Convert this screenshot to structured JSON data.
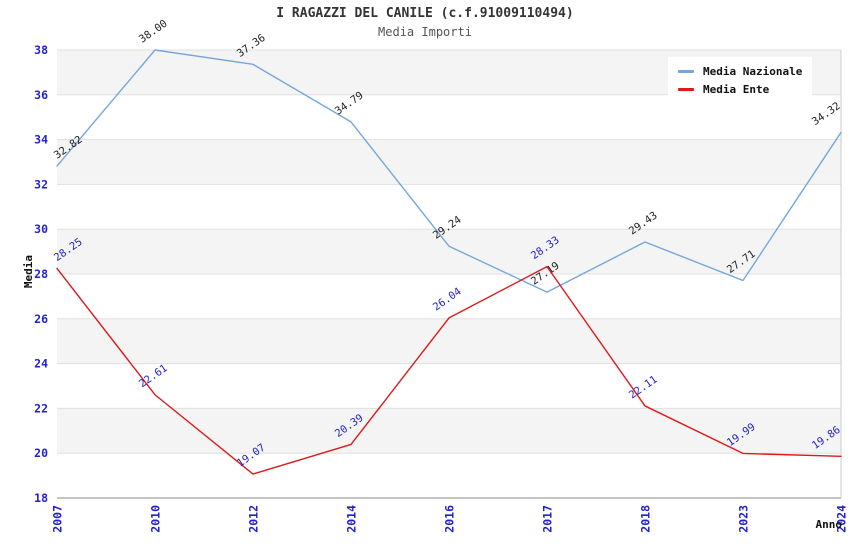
{
  "header": {
    "title": "I RAGAZZI DEL CANILE (c.f.91009110494)",
    "subtitle": "Media Importi"
  },
  "legend": {
    "position": "top-right",
    "items": [
      {
        "label": "Media Nazionale",
        "color": "#74a7dc"
      },
      {
        "label": "Media Ente",
        "color": "#dd1a1a"
      }
    ]
  },
  "chart_data": {
    "type": "line",
    "title": "I RAGAZZI DEL CANILE (c.f.91009110494)",
    "subtitle": "Media Importi",
    "xlabel": "Anno",
    "ylabel": "Media",
    "categories": [
      "2007",
      "2010",
      "2012",
      "2014",
      "2016",
      "2017",
      "2018",
      "2023",
      "2024"
    ],
    "series": [
      {
        "name": "Media Nazionale",
        "color": "#74a7dc",
        "label_color": "#222222",
        "values": [
          32.82,
          38.0,
          37.36,
          34.79,
          29.24,
          27.19,
          29.43,
          27.71,
          34.32
        ]
      },
      {
        "name": "Media Ente",
        "color": "#dd1a1a",
        "label_color": "#2222cc",
        "values": [
          28.25,
          22.61,
          19.07,
          20.39,
          26.04,
          28.33,
          22.11,
          19.99,
          19.86
        ]
      }
    ],
    "ylim": [
      18,
      38
    ],
    "ytick_step": 2,
    "grid": "horizontal",
    "legend_position": "top-right",
    "tick_label_color": "#2222cc",
    "band_colors": [
      "#f4f4f4",
      "#ffffff"
    ],
    "gridline_color": "#e0e0e2",
    "axis_line_color": "#888888",
    "right_border_color": "#cccccc"
  }
}
